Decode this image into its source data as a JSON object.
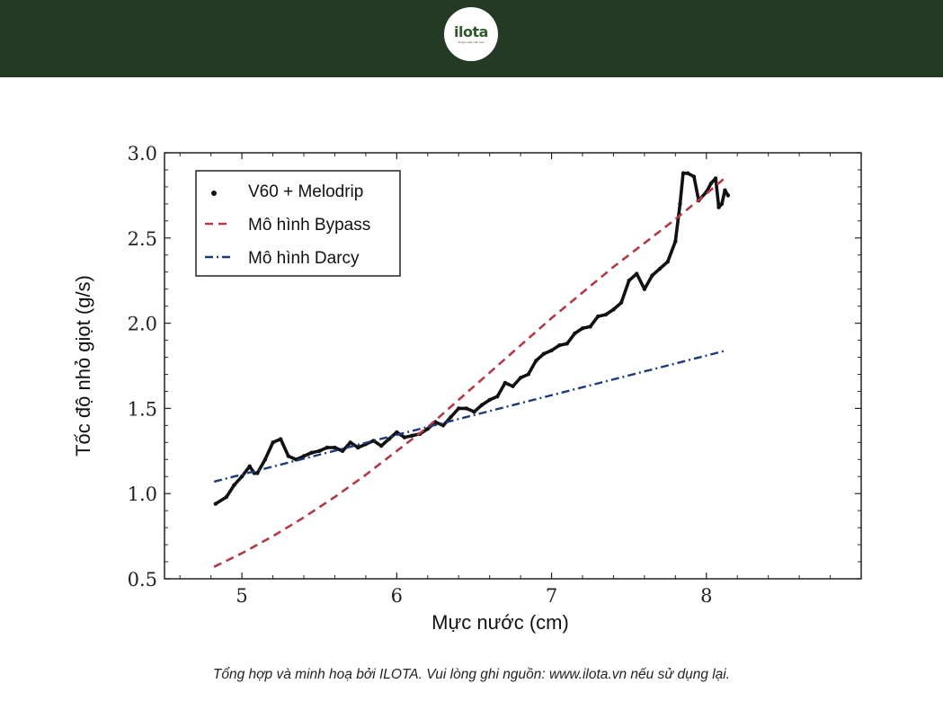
{
  "brand": {
    "logo_text": "ilota",
    "tagline": "things made with love"
  },
  "credit": "Tổng hợp và minh hoạ bởi ILOTA. Vui lòng ghi nguồn: www.ilota.vn nếu sử dụng lại.",
  "colors": {
    "header_bg": "#233b24",
    "bypass": "#b03a48",
    "darcy": "#1f3a78",
    "measured": "#111111"
  },
  "chart_data": {
    "type": "line",
    "title": "",
    "xlabel": "Mực nước (cm)",
    "ylabel": "Tốc độ nhỏ giọt (g/s)",
    "xlim": [
      4.5,
      9.0
    ],
    "ylim": [
      0.5,
      3.0
    ],
    "xticks": [
      "5",
      "6",
      "7",
      "8"
    ],
    "yticks": [
      "0.5",
      "1.0",
      "1.5",
      "2.0",
      "2.5",
      "3.0"
    ],
    "grid": false,
    "legend_position": "top-left",
    "series": [
      {
        "name": "V60 + Melodrip",
        "style": "dots",
        "color": "#111111",
        "x": [
          4.83,
          4.9,
          4.95,
          5.0,
          5.05,
          5.08,
          5.1,
          5.15,
          5.2,
          5.25,
          5.3,
          5.35,
          5.4,
          5.45,
          5.5,
          5.55,
          5.6,
          5.65,
          5.7,
          5.75,
          5.8,
          5.85,
          5.9,
          5.95,
          6.0,
          6.05,
          6.1,
          6.15,
          6.2,
          6.25,
          6.3,
          6.35,
          6.4,
          6.45,
          6.5,
          6.55,
          6.6,
          6.65,
          6.7,
          6.75,
          6.8,
          6.85,
          6.9,
          6.95,
          7.0,
          7.05,
          7.1,
          7.15,
          7.2,
          7.25,
          7.3,
          7.35,
          7.4,
          7.45,
          7.5,
          7.55,
          7.6,
          7.65,
          7.7,
          7.75,
          7.8,
          7.83,
          7.85,
          7.88,
          7.92,
          7.95,
          8.0,
          8.03,
          8.06,
          8.08,
          8.1,
          8.12,
          8.14
        ],
        "y": [
          0.94,
          0.98,
          1.05,
          1.1,
          1.16,
          1.12,
          1.12,
          1.2,
          1.3,
          1.32,
          1.22,
          1.2,
          1.22,
          1.24,
          1.25,
          1.27,
          1.27,
          1.25,
          1.3,
          1.27,
          1.29,
          1.31,
          1.28,
          1.32,
          1.36,
          1.33,
          1.34,
          1.35,
          1.38,
          1.42,
          1.4,
          1.45,
          1.5,
          1.5,
          1.48,
          1.52,
          1.55,
          1.57,
          1.65,
          1.63,
          1.68,
          1.7,
          1.78,
          1.82,
          1.84,
          1.87,
          1.88,
          1.94,
          1.97,
          1.98,
          2.04,
          2.05,
          2.08,
          2.12,
          2.25,
          2.29,
          2.2,
          2.28,
          2.32,
          2.36,
          2.48,
          2.7,
          2.88,
          2.88,
          2.86,
          2.72,
          2.77,
          2.82,
          2.85,
          2.68,
          2.7,
          2.78,
          2.75
        ]
      },
      {
        "name": "Mô hình Bypass",
        "style": "dashed",
        "color": "#b03a48",
        "x": [
          4.82,
          5.0,
          5.2,
          5.4,
          5.6,
          5.8,
          6.0,
          6.2,
          6.4,
          6.6,
          6.8,
          7.0,
          7.2,
          7.4,
          7.6,
          7.8,
          8.0,
          8.13
        ],
        "y": [
          0.57,
          0.65,
          0.75,
          0.86,
          0.98,
          1.11,
          1.25,
          1.39,
          1.55,
          1.71,
          1.87,
          2.03,
          2.18,
          2.33,
          2.47,
          2.61,
          2.76,
          2.86
        ]
      },
      {
        "name": "Mô hình Darcy",
        "style": "dashdot",
        "color": "#1f3a78",
        "x": [
          4.82,
          8.13
        ],
        "y": [
          1.07,
          1.84
        ]
      }
    ]
  }
}
